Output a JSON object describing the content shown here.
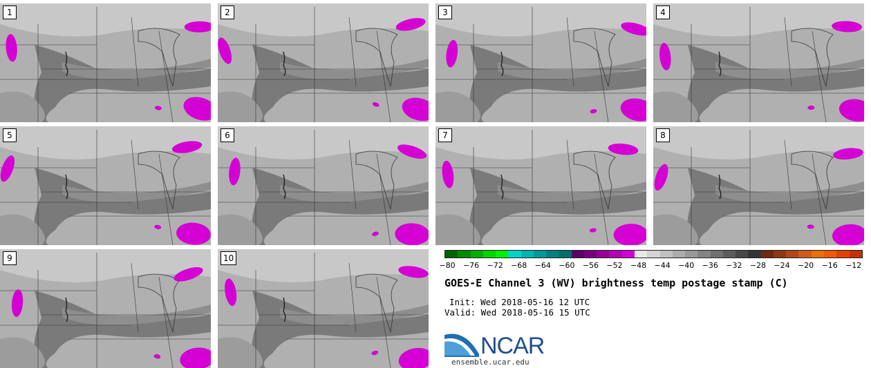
{
  "panels": [
    {
      "label": "1"
    },
    {
      "label": "2"
    },
    {
      "label": "3"
    },
    {
      "label": "4"
    },
    {
      "label": "5"
    },
    {
      "label": "6"
    },
    {
      "label": "7"
    },
    {
      "label": "8"
    },
    {
      "label": "9"
    },
    {
      "label": "10"
    }
  ],
  "colorbar": {
    "colors": [
      "#006400",
      "#008a00",
      "#00b000",
      "#00d400",
      "#00f000",
      "#00d4c8",
      "#00b4b4",
      "#009a9a",
      "#008080",
      "#006e6e",
      "#5a0064",
      "#78007e",
      "#960096",
      "#b400b4",
      "#d200d2",
      "#e8e8e8",
      "#d4d4d4",
      "#c0c0c0",
      "#acacac",
      "#989898",
      "#848484",
      "#707070",
      "#5c5c5c",
      "#484848",
      "#343434",
      "#6e2a10",
      "#8c3a14",
      "#b04818",
      "#d05a1c",
      "#e87010",
      "#f05a0a",
      "#e04000",
      "#c83000"
    ],
    "tick_labels": [
      "−80",
      "−76",
      "−72",
      "−68",
      "−64",
      "−60",
      "−56",
      "−52",
      "−48",
      "−44",
      "−40",
      "−36",
      "−32",
      "−28",
      "−24",
      "−20",
      "−16",
      "−12"
    ],
    "range": [
      -80,
      -10
    ]
  },
  "title": "GOES-E Channel 3 (WV) brightness temp postage stamp (C)",
  "init": "Init: Wed 2018-05-16 12 UTC",
  "valid": "Valid: Wed 2018-05-16 15 UTC",
  "logo": {
    "text": "NCAR",
    "url": "ensemble.ucar.edu",
    "color": "#1f4e8c"
  }
}
